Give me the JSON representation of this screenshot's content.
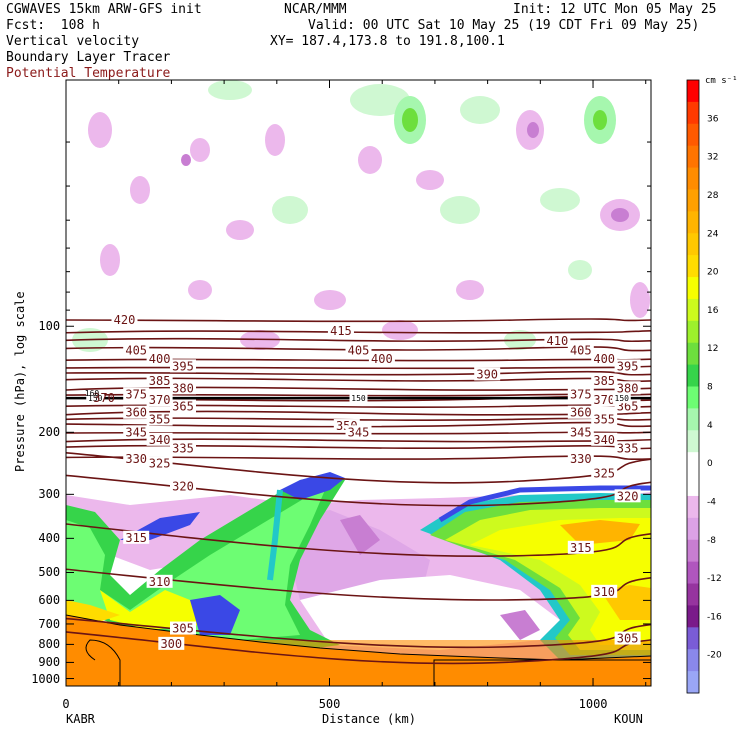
{
  "header": {
    "line1_left": "CGWAVES 15km ARW-GFS init",
    "line1_center": "NCAR/MMM",
    "line1_right": "Init: 12 UTC Mon 05 May 25",
    "line2_left": "Fcst:  108 h",
    "line2_right": "Valid: 00 UTC Sat 10 May 25 (19 CDT Fri 09 May 25)",
    "line3_left": "Vertical velocity",
    "line3_right": "XY= 187.4,173.8 to 191.8,100.1",
    "line4_left": "Boundary Layer Tracer",
    "line5_left": "Potential Temperature"
  },
  "colors": {
    "theta_line": "#6b1414",
    "theta_label": "#6b1414",
    "tracer_line": "#000000"
  },
  "chart_data": {
    "type": "heatmap",
    "title": "",
    "xlabel": "Distance (km)",
    "ylabel": "Pressure (hPa), log scale",
    "xlim": [
      0,
      1110
    ],
    "ylim_hpa": [
      1050,
      20
    ],
    "x_ticks": [
      {
        "value": 0,
        "label": "0"
      },
      {
        "value": 500,
        "label": "500"
      },
      {
        "value": 1000,
        "label": "1000"
      }
    ],
    "y_ticks": [
      {
        "value": 100,
        "label": "100"
      },
      {
        "value": 200,
        "label": "200"
      },
      {
        "value": 300,
        "label": "300"
      },
      {
        "value": 400,
        "label": "400"
      },
      {
        "value": 500,
        "label": "500"
      },
      {
        "value": 600,
        "label": "600"
      },
      {
        "value": 700,
        "label": "700"
      },
      {
        "value": 800,
        "label": "800"
      },
      {
        "value": 900,
        "label": "900"
      },
      {
        "value": 1000,
        "label": "1000"
      }
    ],
    "endpoints": {
      "left": "KABR",
      "right": "KOUN"
    },
    "colorbar": {
      "unit": "cm s⁻¹",
      "ticks": [
        {
          "value": 36,
          "label": "36"
        },
        {
          "value": 32,
          "label": "32"
        },
        {
          "value": 28,
          "label": "28"
        },
        {
          "value": 24,
          "label": "24"
        },
        {
          "value": 20,
          "label": "20"
        },
        {
          "value": 16,
          "label": "16"
        },
        {
          "value": 12,
          "label": "12"
        },
        {
          "value": 8,
          "label": "8"
        },
        {
          "value": 4,
          "label": "4"
        },
        {
          "value": 0,
          "label": "0"
        },
        {
          "value": -4,
          "label": "-4"
        },
        {
          "value": -8,
          "label": "-8"
        },
        {
          "value": -12,
          "label": "-12"
        },
        {
          "value": -16,
          "label": "-16"
        },
        {
          "value": -20,
          "label": "-20"
        }
      ],
      "colors": [
        "#ff0000",
        "#ff3a00",
        "#ff5a00",
        "#ff7400",
        "#ff8c00",
        "#ffa000",
        "#ffb400",
        "#ffc800",
        "#ffdc00",
        "#f6ff00",
        "#cdfa1e",
        "#9df02c",
        "#6ddf3d",
        "#36d44a",
        "#6dfd73",
        "#a6f7ae",
        "#cff8d2",
        "#ffffff",
        "#ffffff",
        "#ecb8ec",
        "#dca2e6",
        "#c87ed2",
        "#b056be",
        "#96349f",
        "#7a1a8a",
        "#7a5cd6",
        "#8a88ea",
        "#9aa6f6"
      ]
    },
    "theta_contours_K": [
      {
        "value": 420,
        "p_hpa": 96,
        "labels": [
          "420"
        ]
      },
      {
        "value": 415,
        "p_hpa": 103,
        "labels": [
          "415"
        ]
      },
      {
        "value": 410,
        "p_hpa": 110,
        "labels": [
          "410"
        ]
      },
      {
        "value": 405,
        "p_hpa": 117,
        "labels": [
          "405",
          "405",
          "405"
        ]
      },
      {
        "value": 400,
        "p_hpa": 124,
        "labels": [
          "400",
          "400",
          "400"
        ]
      },
      {
        "value": 395,
        "p_hpa": 130,
        "labels": [
          "395",
          "395"
        ]
      },
      {
        "value": 390,
        "p_hpa": 137,
        "labels": [
          "390"
        ]
      },
      {
        "value": 385,
        "p_hpa": 143,
        "labels": [
          "385",
          "385"
        ]
      },
      {
        "value": 380,
        "p_hpa": 150,
        "labels": [
          "380",
          "380"
        ]
      },
      {
        "value": 375,
        "p_hpa": 156,
        "labels": [
          "375",
          "375"
        ]
      },
      {
        "value": 370,
        "p_hpa": 162,
        "labels": [
          "370",
          "370"
        ]
      },
      {
        "value": 365,
        "p_hpa": 169,
        "labels": [
          "365",
          "365"
        ]
      },
      {
        "value": 360,
        "p_hpa": 176,
        "labels": [
          "360",
          "360"
        ]
      },
      {
        "value": 355,
        "p_hpa": 184,
        "labels": [
          "355",
          "355"
        ]
      },
      {
        "value": 350,
        "p_hpa": 192,
        "labels": [
          "350"
        ]
      },
      {
        "value": 345,
        "p_hpa": 200,
        "labels": [
          "345",
          "345",
          "345"
        ]
      },
      {
        "value": 340,
        "p_hpa": 210,
        "labels": [
          "340",
          "340"
        ]
      },
      {
        "value": 335,
        "p_hpa": 222,
        "labels": [
          "335",
          "335"
        ]
      },
      {
        "value": 330,
        "p_hpa": 238,
        "labels": [
          "330",
          "330"
        ]
      },
      {
        "value": 325,
        "p_hpa": 258,
        "labels": [
          "325",
          "325"
        ]
      },
      {
        "value": 320,
        "p_hpa": 300,
        "labels": [
          "320",
          "320"
        ]
      },
      {
        "value": 315,
        "p_hpa": 420,
        "labels": [
          "315",
          "315"
        ]
      },
      {
        "value": 310,
        "p_hpa": 560,
        "labels": [
          "310",
          "310"
        ]
      },
      {
        "value": 305,
        "p_hpa": 760,
        "labels": [
          "305",
          "305"
        ]
      },
      {
        "value": 300,
        "p_hpa": 840,
        "labels": [
          "300"
        ]
      }
    ],
    "tropopause_marker": {
      "p_hpa": 160,
      "labels": [
        "150",
        "150",
        "150"
      ]
    },
    "label_370_left": "370",
    "label_160_left": "160"
  }
}
